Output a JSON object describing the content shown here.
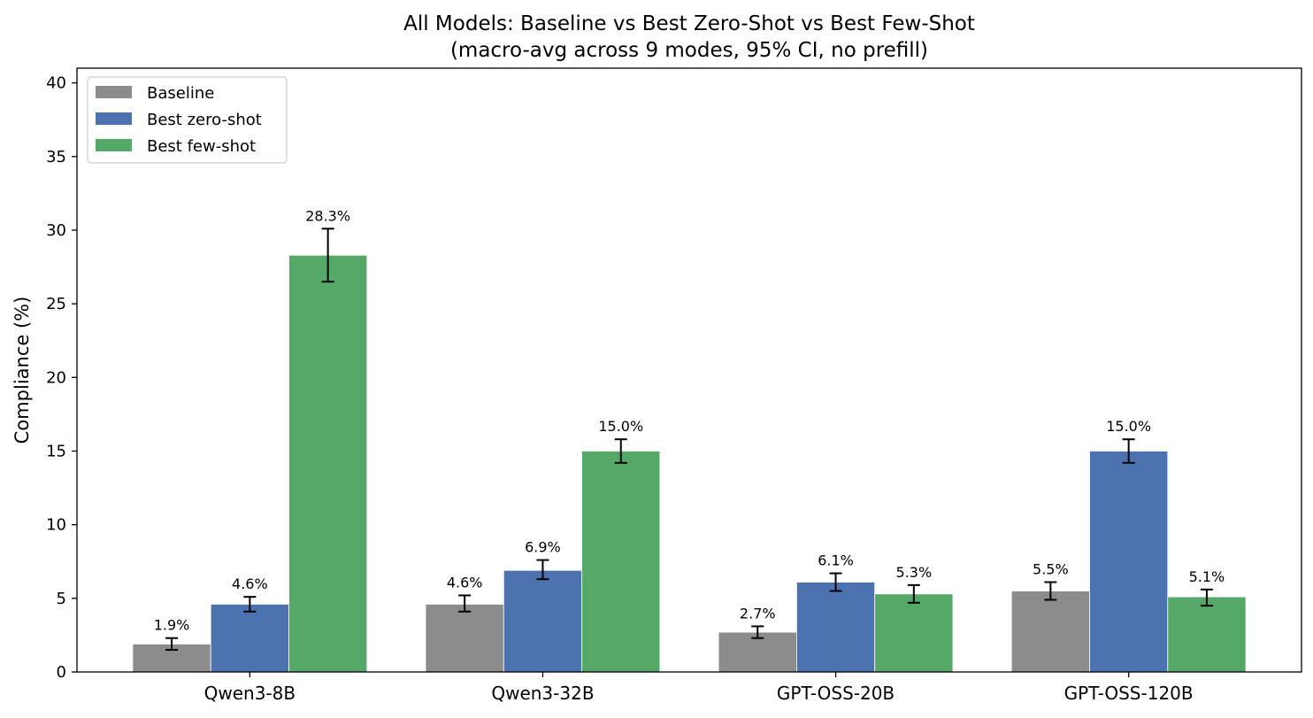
{
  "chart_data": {
    "type": "bar",
    "title": "All Models: Baseline vs Best Zero-Shot vs Best Few-Shot",
    "subtitle": "(macro-avg across 9 modes, 95% CI, no prefill)",
    "xlabel": "",
    "ylabel": "Compliance (%)",
    "ylim": [
      0,
      41
    ],
    "yticks": [
      0,
      5,
      10,
      15,
      20,
      25,
      30,
      35,
      40
    ],
    "grid": false,
    "legend_position": "top-left",
    "categories": [
      "Qwen3-8B",
      "Qwen3-32B",
      "GPT-OSS-20B",
      "GPT-OSS-120B"
    ],
    "series": [
      {
        "name": "Baseline",
        "color": "#8c8c8c",
        "values": [
          1.9,
          4.6,
          2.7,
          5.5
        ],
        "labels": [
          "1.9%",
          "4.6%",
          "2.7%",
          "5.5%"
        ],
        "ci_low": [
          1.5,
          4.1,
          2.3,
          4.9
        ],
        "ci_high": [
          2.3,
          5.2,
          3.1,
          6.1
        ]
      },
      {
        "name": "Best zero-shot",
        "color": "#4c72b0",
        "values": [
          4.6,
          6.9,
          6.1,
          15.0
        ],
        "labels": [
          "4.6%",
          "6.9%",
          "6.1%",
          "15.0%"
        ],
        "ci_low": [
          4.1,
          6.3,
          5.5,
          14.2
        ],
        "ci_high": [
          5.1,
          7.6,
          6.7,
          15.8
        ]
      },
      {
        "name": "Best few-shot",
        "color": "#55a868",
        "values": [
          28.3,
          15.0,
          5.3,
          5.1
        ],
        "labels": [
          "28.3%",
          "15.0%",
          "5.3%",
          "5.1%"
        ],
        "ci_low": [
          26.5,
          14.2,
          4.7,
          4.5
        ],
        "ci_high": [
          30.1,
          15.8,
          5.9,
          5.6
        ]
      }
    ]
  }
}
